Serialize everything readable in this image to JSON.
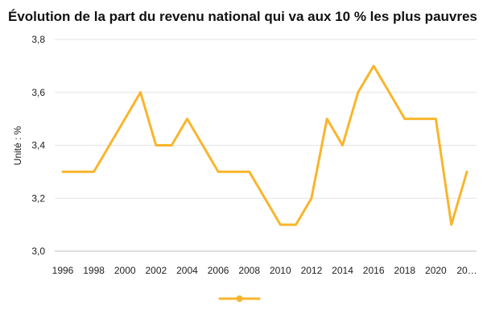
{
  "chart_data": {
    "type": "line",
    "title": "Évolution de la part du revenu national qui va aux 10 % les plus pauvres",
    "ylabel": "Unité : %",
    "xlabel": "",
    "x": [
      1996,
      1997,
      1998,
      1999,
      2000,
      2001,
      2002,
      2003,
      2004,
      2005,
      2006,
      2007,
      2008,
      2009,
      2010,
      2011,
      2012,
      2013,
      2014,
      2015,
      2016,
      2017,
      2018,
      2019,
      2020,
      2021,
      2022
    ],
    "x_tick_labels": [
      "1996",
      "1998",
      "2000",
      "2002",
      "2004",
      "2006",
      "2008",
      "2010",
      "2012",
      "2014",
      "2016",
      "2018",
      "2020",
      "20…"
    ],
    "series": [
      {
        "color": "#F9B52C",
        "values": [
          3.3,
          3.3,
          3.3,
          3.4,
          3.5,
          3.6,
          3.4,
          3.4,
          3.5,
          3.4,
          3.3,
          3.3,
          3.3,
          3.2,
          3.1,
          3.1,
          3.2,
          3.5,
          3.4,
          3.6,
          3.7,
          3.6,
          3.5,
          3.5,
          3.5,
          3.1,
          3.3
        ]
      }
    ],
    "ylim": [
      3.0,
      3.8
    ],
    "y_ticks": [
      "3,0",
      "3,2",
      "3,4",
      "3,6",
      "3,8"
    ],
    "grid": true,
    "legend_position": "bottom"
  }
}
